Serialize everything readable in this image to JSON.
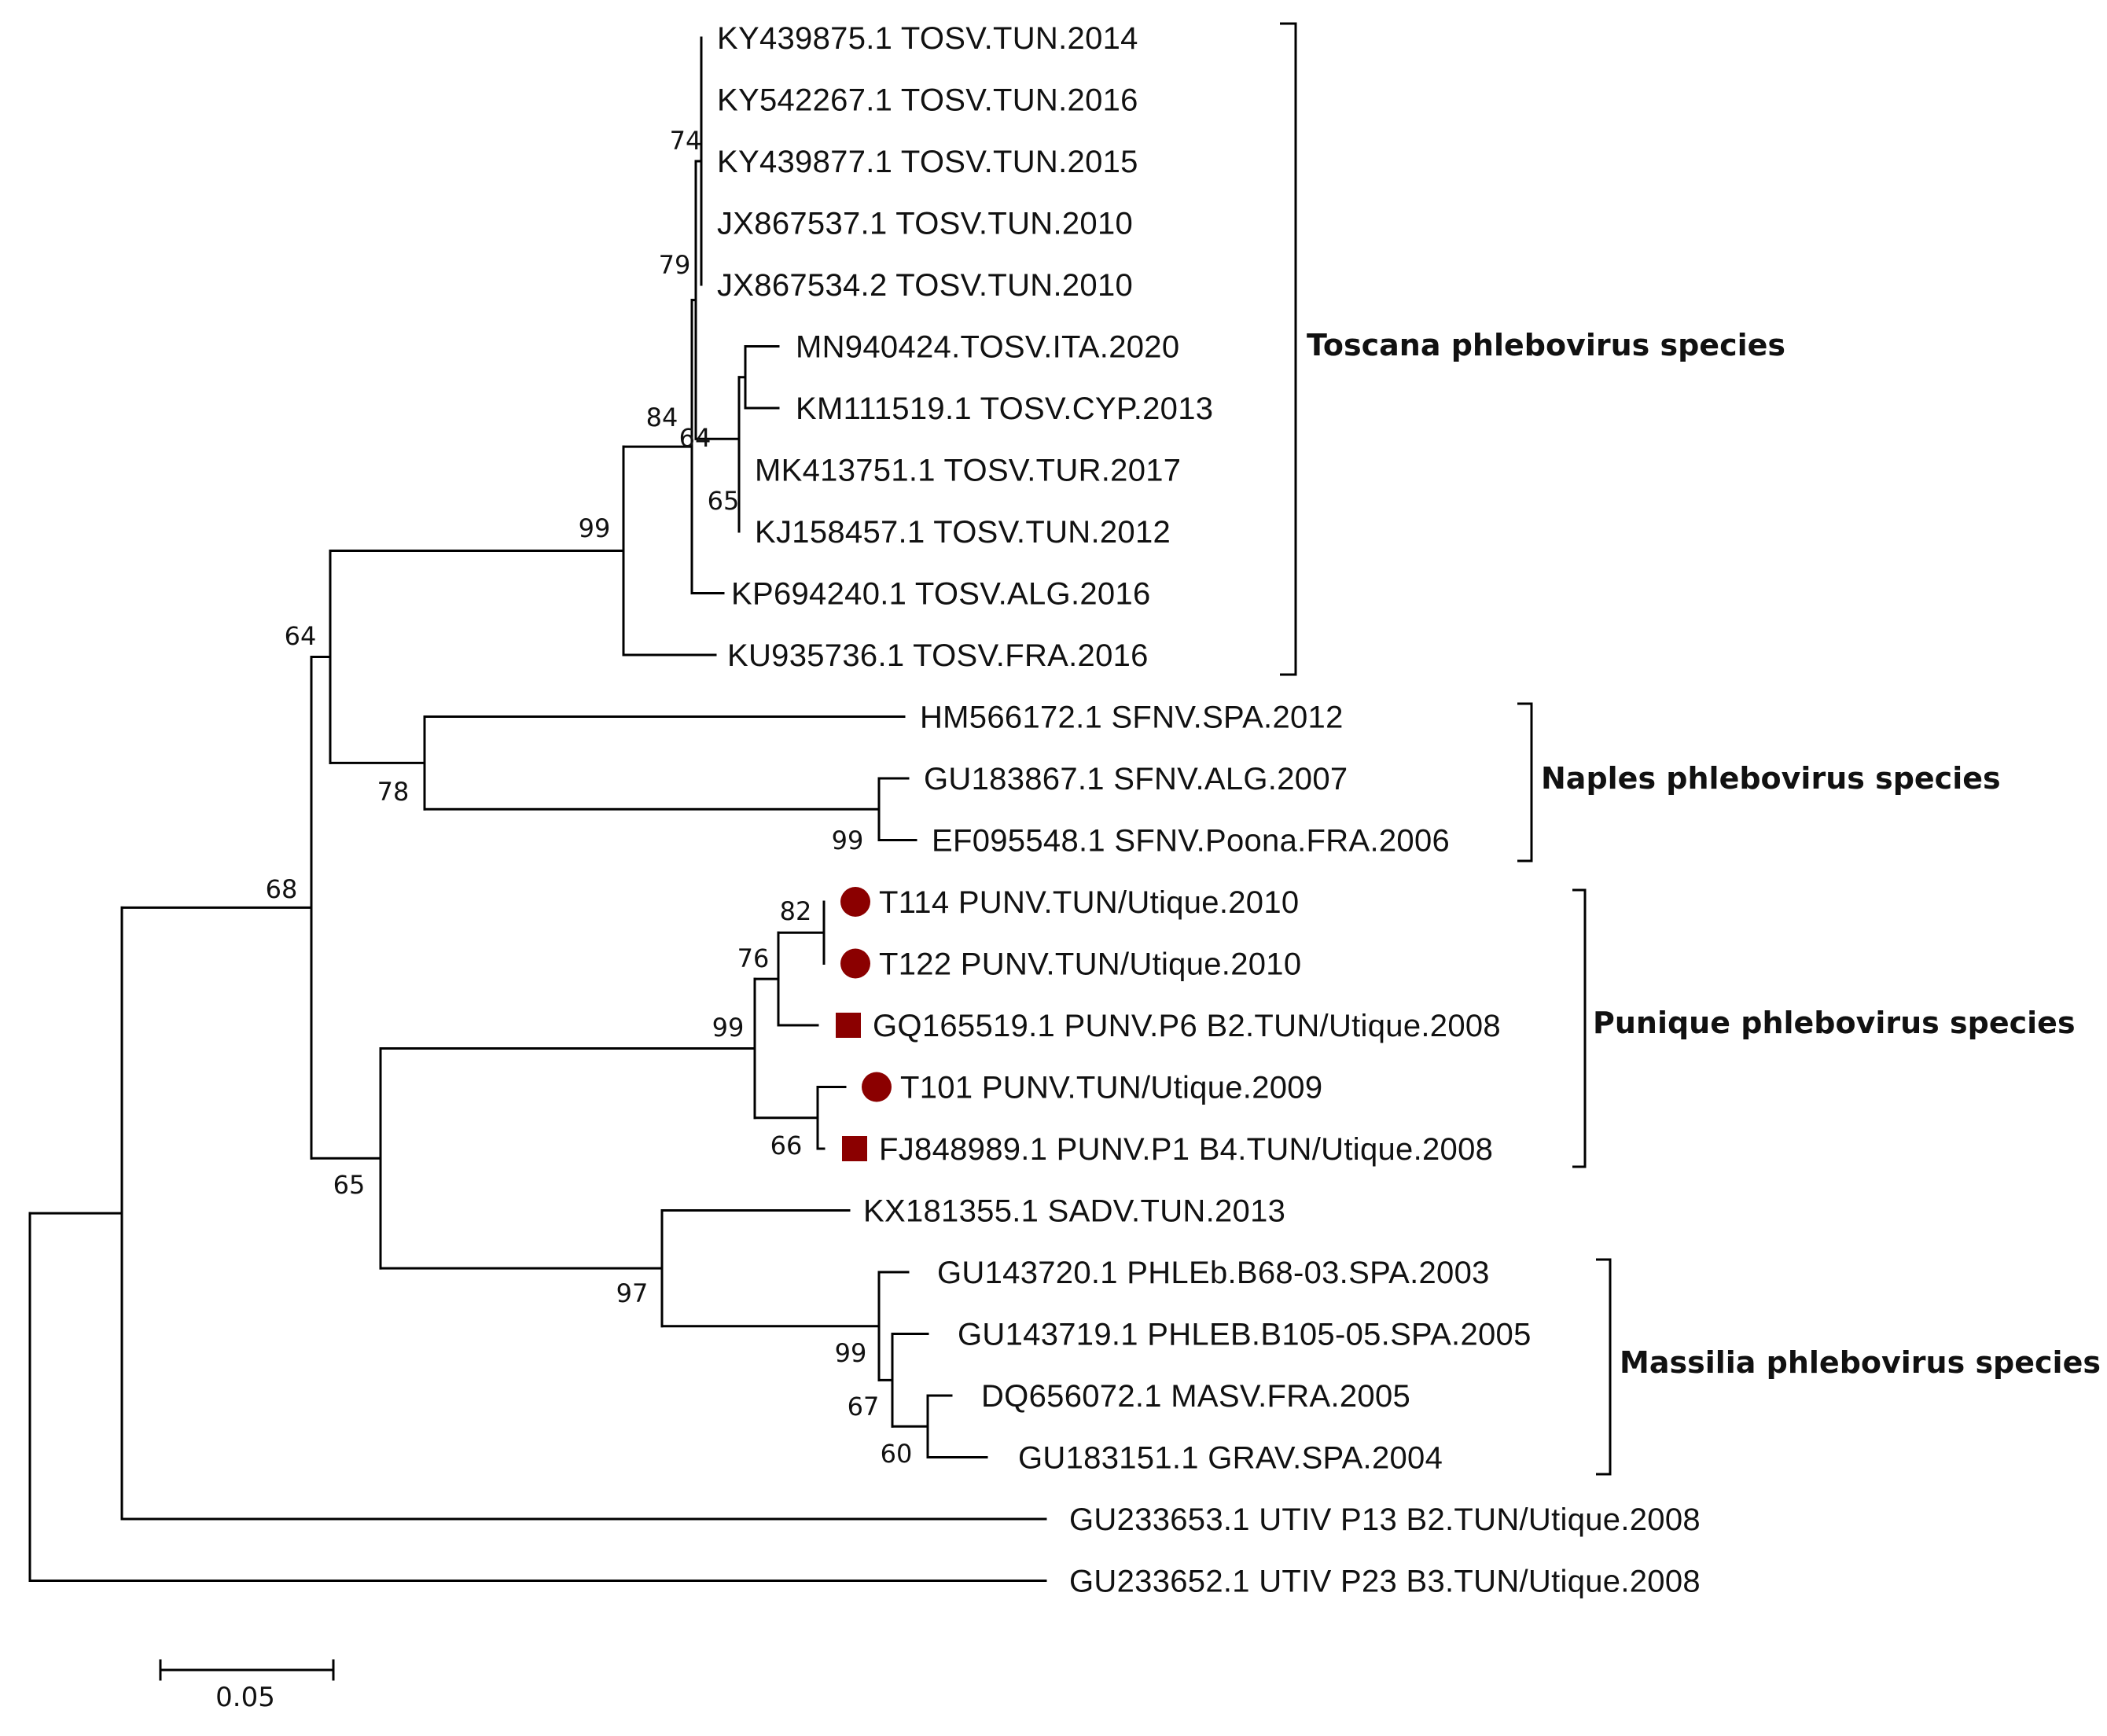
{
  "tree": {
    "leaves": [
      {
        "id": "L1",
        "label": "KY439875.1 TOSV.TUN.2014",
        "marker": "none"
      },
      {
        "id": "L2",
        "label": "KY542267.1 TOSV.TUN.2016",
        "marker": "none"
      },
      {
        "id": "L3",
        "label": "KY439877.1 TOSV.TUN.2015",
        "marker": "none"
      },
      {
        "id": "L4",
        "label": "JX867537.1 TOSV.TUN.2010",
        "marker": "none"
      },
      {
        "id": "L5",
        "label": "JX867534.2 TOSV.TUN.2010",
        "marker": "none"
      },
      {
        "id": "L6",
        "label": "MN940424.TOSV.ITA.2020",
        "marker": "none"
      },
      {
        "id": "L7",
        "label": "KM111519.1 TOSV.CYP.2013",
        "marker": "none"
      },
      {
        "id": "L8",
        "label": "MK413751.1 TOSV.TUR.2017",
        "marker": "none"
      },
      {
        "id": "L9",
        "label": "KJ158457.1 TOSV.TUN.2012",
        "marker": "none"
      },
      {
        "id": "L10",
        "label": "KP694240.1 TOSV.ALG.2016",
        "marker": "none"
      },
      {
        "id": "L11",
        "label": "KU935736.1 TOSV.FRA.2016",
        "marker": "none"
      },
      {
        "id": "L12",
        "label": "HM566172.1 SFNV.SPA.2012",
        "marker": "none"
      },
      {
        "id": "L13",
        "label": "GU183867.1 SFNV.ALG.2007",
        "marker": "none"
      },
      {
        "id": "L14",
        "label": "EF095548.1 SFNV.Poona.FRA.2006",
        "marker": "none"
      },
      {
        "id": "L15",
        "label": "T114 PUNV.TUN/Utique.2010",
        "marker": "circle"
      },
      {
        "id": "L16",
        "label": "T122 PUNV.TUN/Utique.2010",
        "marker": "circle"
      },
      {
        "id": "L17",
        "label": "GQ165519.1 PUNV.P6 B2.TUN/Utique.2008",
        "marker": "square"
      },
      {
        "id": "L18",
        "label": "T101 PUNV.TUN/Utique.2009",
        "marker": "circle"
      },
      {
        "id": "L19",
        "label": "FJ848989.1 PUNV.P1 B4.TUN/Utique.2008",
        "marker": "square"
      },
      {
        "id": "L20",
        "label": "KX181355.1 SADV.TUN.2013",
        "marker": "none"
      },
      {
        "id": "L21",
        "label": "GU143720.1 PHLEb.B68-03.SPA.2003",
        "marker": "none"
      },
      {
        "id": "L22",
        "label": "GU143719.1 PHLEB.B105-05.SPA.2005",
        "marker": "none"
      },
      {
        "id": "L23",
        "label": "DQ656072.1 MASV.FRA.2005",
        "marker": "none"
      },
      {
        "id": "L24",
        "label": "GU183151.1 GRAV.SPA.2004",
        "marker": "none"
      },
      {
        "id": "L25",
        "label": "GU233653.1 UTIV P13 B2.TUN/Utique.2008",
        "marker": "none"
      },
      {
        "id": "L26",
        "label": "GU233652.1 UTIV P23 B3.TUN/Utique.2008",
        "marker": "none"
      }
    ],
    "bootstrap_values": [
      "74",
      "79",
      "84",
      "64",
      "65",
      "99",
      "64",
      "78",
      "99",
      "68",
      "82",
      "76",
      "99",
      "66",
      "65",
      "97",
      "99",
      "67",
      "60"
    ],
    "clades": [
      {
        "id": "toscana",
        "label": "Toscana phlebovirus species",
        "color": "#111111",
        "bracket_color": "#000000"
      },
      {
        "id": "naples",
        "label": "Naples phlebovirus species",
        "color": "#111111",
        "bracket_color": "#000000"
      },
      {
        "id": "punique",
        "label": "Punique phlebovirus species",
        "color": "#e8121a",
        "bracket_color": "#a11d1d"
      },
      {
        "id": "massilia",
        "label": "Massilia phlebovirus species",
        "color": "#111111",
        "bracket_color": "#000000"
      }
    ],
    "marker_color": "#8b0000",
    "scale_bar": {
      "label": "0.05",
      "value": 0.05
    }
  }
}
